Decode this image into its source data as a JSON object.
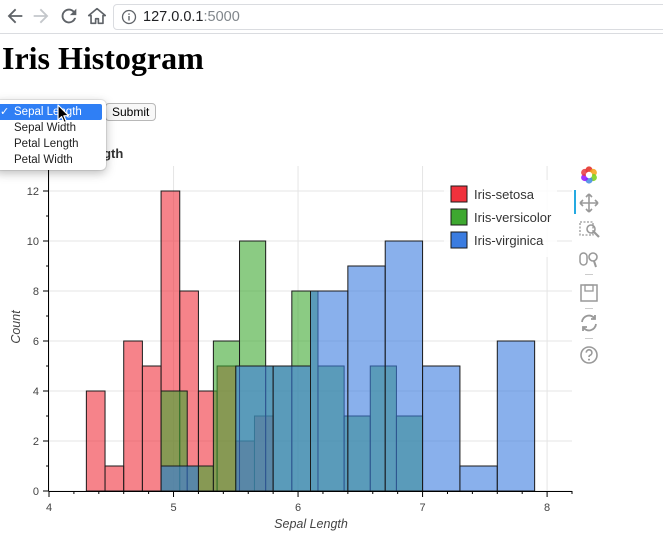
{
  "browser": {
    "url_host": "127.0.0.1",
    "url_port": ":5000"
  },
  "page": {
    "title": "Iris Histogram",
    "submit_label": "Submit",
    "plot_title_visible": "Length"
  },
  "dropdown": {
    "selected": "Sepal Length",
    "options": [
      "Sepal Length",
      "Sepal Width",
      "Petal Length",
      "Petal Width"
    ]
  },
  "colors": {
    "setosa": "#f0313c",
    "versicolor": "#3ea830",
    "virginica": "#3b7ce0"
  },
  "toolbar": {
    "tools": [
      "bokeh-logo-icon",
      "pan-icon",
      "box-zoom-icon",
      "wheel-zoom-icon",
      "save-icon",
      "reset-icon",
      "help-icon"
    ]
  },
  "chart_data": {
    "type": "bar",
    "xlabel": "Sepal Length",
    "ylabel": "Count",
    "xlim": [
      4,
      8.2
    ],
    "ylim": [
      0,
      13
    ],
    "x_ticks": [
      4,
      5,
      6,
      7,
      8
    ],
    "y_ticks": [
      0,
      2,
      4,
      6,
      8,
      10,
      12
    ],
    "grid": true,
    "legend_position": "top-right",
    "series": [
      {
        "name": "Iris-setosa",
        "color_key": "setosa",
        "bins": [
          {
            "x0": 4.3,
            "x1": 4.45,
            "count": 4
          },
          {
            "x0": 4.45,
            "x1": 4.6,
            "count": 1
          },
          {
            "x0": 4.6,
            "x1": 4.75,
            "count": 6
          },
          {
            "x0": 4.75,
            "x1": 4.9,
            "count": 5
          },
          {
            "x0": 4.9,
            "x1": 5.05,
            "count": 12
          },
          {
            "x0": 5.05,
            "x1": 5.2,
            "count": 8
          },
          {
            "x0": 5.2,
            "x1": 5.35,
            "count": 4
          },
          {
            "x0": 5.35,
            "x1": 5.5,
            "count": 5
          },
          {
            "x0": 5.5,
            "x1": 5.65,
            "count": 2
          },
          {
            "x0": 5.65,
            "x1": 5.8,
            "count": 3
          }
        ]
      },
      {
        "name": "Iris-versicolor",
        "color_key": "versicolor",
        "bins": [
          {
            "x0": 4.9,
            "x1": 5.11,
            "count": 4
          },
          {
            "x0": 5.11,
            "x1": 5.32,
            "count": 1
          },
          {
            "x0": 5.32,
            "x1": 5.53,
            "count": 6
          },
          {
            "x0": 5.53,
            "x1": 5.74,
            "count": 10
          },
          {
            "x0": 5.74,
            "x1": 5.95,
            "count": 5
          },
          {
            "x0": 5.95,
            "x1": 6.16,
            "count": 8
          },
          {
            "x0": 6.16,
            "x1": 6.37,
            "count": 5
          },
          {
            "x0": 6.37,
            "x1": 6.58,
            "count": 3
          },
          {
            "x0": 6.58,
            "x1": 6.79,
            "count": 5
          },
          {
            "x0": 6.79,
            "x1": 7.0,
            "count": 3
          }
        ]
      },
      {
        "name": "Iris-virginica",
        "color_key": "virginica",
        "bins": [
          {
            "x0": 4.9,
            "x1": 5.2,
            "count": 1
          },
          {
            "x0": 5.2,
            "x1": 5.5,
            "count": 0
          },
          {
            "x0": 5.5,
            "x1": 5.8,
            "count": 5
          },
          {
            "x0": 5.8,
            "x1": 6.1,
            "count": 5
          },
          {
            "x0": 6.1,
            "x1": 6.4,
            "count": 8
          },
          {
            "x0": 6.4,
            "x1": 6.7,
            "count": 9
          },
          {
            "x0": 6.7,
            "x1": 7.0,
            "count": 10
          },
          {
            "x0": 7.0,
            "x1": 7.3,
            "count": 5
          },
          {
            "x0": 7.3,
            "x1": 7.6,
            "count": 1
          },
          {
            "x0": 7.6,
            "x1": 7.9,
            "count": 6
          }
        ]
      }
    ]
  }
}
